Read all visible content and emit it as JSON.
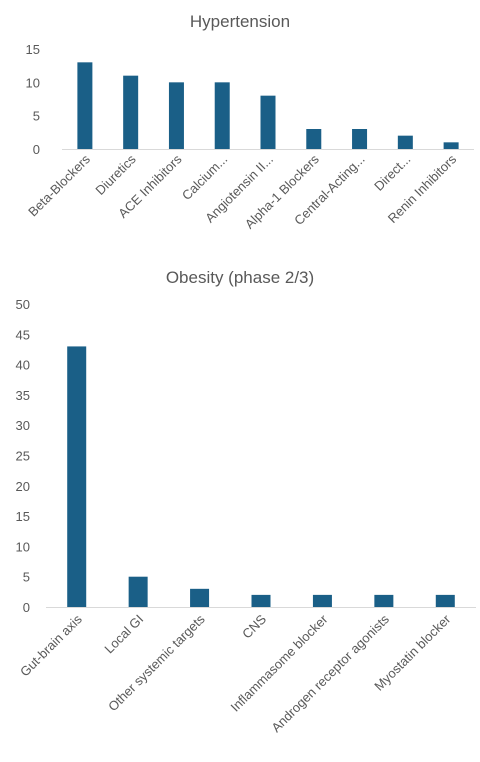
{
  "chart_data": [
    {
      "type": "bar",
      "title": "Hypertension",
      "categories": [
        "Beta-Blockers",
        "Diuretics",
        "ACE Inhibitors",
        "Calcium...",
        "Angiotensin II...",
        "Alpha-1 Blockers",
        "Central-Acting...",
        "Direct...",
        "Renin Inhibitors"
      ],
      "values": [
        13,
        11,
        10,
        10,
        8,
        3,
        3,
        2,
        1
      ],
      "ylim": [
        0,
        15
      ],
      "yticks": [
        0,
        5,
        10,
        15
      ],
      "grid": false,
      "color": "#1a5f87"
    },
    {
      "type": "bar",
      "title": "Obesity (phase 2/3)",
      "categories": [
        "Gut-brain axis",
        "Local GI",
        "Other systemic targets",
        "CNS",
        "Inflammasome blocker",
        "Androgen receptor agonists",
        "Myostatin blocker"
      ],
      "values": [
        43,
        5,
        3,
        2,
        2,
        2,
        2
      ],
      "ylim": [
        0,
        50
      ],
      "yticks": [
        0,
        5,
        10,
        15,
        20,
        25,
        30,
        35,
        40,
        45,
        50
      ],
      "grid": false,
      "color": "#1a5f87"
    }
  ]
}
